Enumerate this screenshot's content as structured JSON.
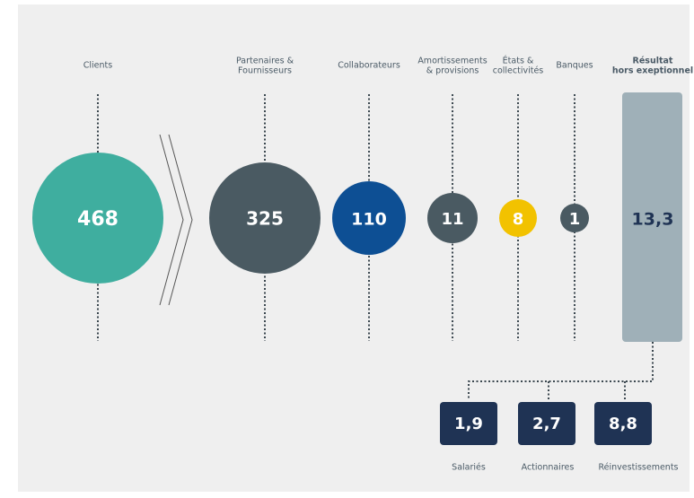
{
  "flows": [
    {
      "label": [
        "Clients"
      ],
      "value": "468"
    },
    {
      "label": [
        "Partenaires &",
        "Fournisseurs"
      ],
      "value": "325"
    },
    {
      "label": [
        "Collaborateurs"
      ],
      "value": "110"
    },
    {
      "label": [
        "Amortissements",
        "& provisions"
      ],
      "value": "11"
    },
    {
      "label": [
        "États &",
        "collectivités"
      ],
      "value": "8"
    },
    {
      "label": [
        "Banques"
      ],
      "value": "1"
    }
  ],
  "result": {
    "label": [
      "Résultat",
      "hors exeptionnel"
    ],
    "value": "13,3"
  },
  "distribution": [
    {
      "value": "1,9",
      "label": "Salariés"
    },
    {
      "value": "2,7",
      "label": "Actionnaires"
    },
    {
      "value": "8,8",
      "label": "Réinvestissements"
    }
  ]
}
